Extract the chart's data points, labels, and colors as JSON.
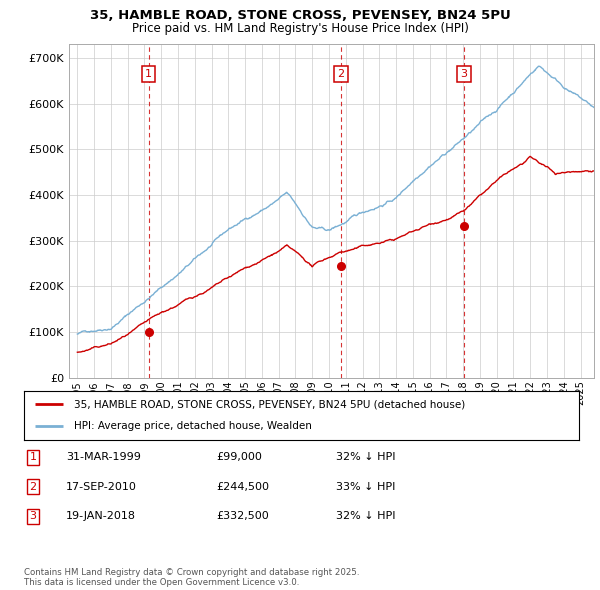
{
  "title": "35, HAMBLE ROAD, STONE CROSS, PEVENSEY, BN24 5PU",
  "subtitle": "Price paid vs. HM Land Registry's House Price Index (HPI)",
  "red_label": "35, HAMBLE ROAD, STONE CROSS, PEVENSEY, BN24 5PU (detached house)",
  "blue_label": "HPI: Average price, detached house, Wealden",
  "footnote": "Contains HM Land Registry data © Crown copyright and database right 2025.\nThis data is licensed under the Open Government Licence v3.0.",
  "sale_points": [
    {
      "num": 1,
      "date": "31-MAR-1999",
      "price": 99000,
      "hpi_pct": "32% ↓ HPI",
      "x": 1999.25
    },
    {
      "num": 2,
      "date": "17-SEP-2010",
      "price": 244500,
      "hpi_pct": "33% ↓ HPI",
      "x": 2010.71
    },
    {
      "num": 3,
      "date": "19-JAN-2018",
      "price": 332500,
      "hpi_pct": "32% ↓ HPI",
      "x": 2018.05
    }
  ],
  "ylim": [
    0,
    730000
  ],
  "xlim_start": 1994.5,
  "xlim_end": 2025.8,
  "background_color": "#ffffff",
  "grid_color": "#cccccc",
  "red_color": "#cc0000",
  "blue_color": "#7ab0d4"
}
